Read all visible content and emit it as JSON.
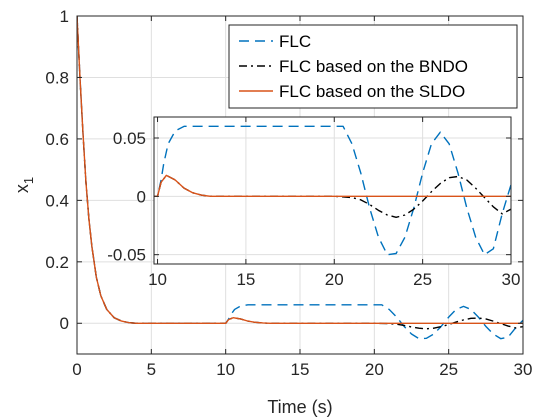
{
  "chart_data": [
    {
      "type": "line",
      "role": "main",
      "xlabel": "Time (s)",
      "ylabel": "x",
      "ylabel_subscript": "1",
      "xlim": [
        0,
        30
      ],
      "ylim": [
        -0.1,
        1.0
      ],
      "xticks": [
        0,
        5,
        10,
        15,
        20,
        25,
        30
      ],
      "yticks": [
        0,
        0.2,
        0.4,
        0.6,
        0.8,
        1
      ],
      "xtick_labels": [
        "0",
        "5",
        "10",
        "15",
        "20",
        "25",
        "30"
      ],
      "ytick_labels": [
        "0",
        "0.2",
        "0.4",
        "0.6",
        "0.8",
        "1"
      ],
      "grid": true,
      "legend_position": "top-right",
      "series": [
        {
          "name": "FLC",
          "color": "#0072BD",
          "dash": "dashed",
          "x": [
            0,
            0.2,
            0.4,
            0.6,
            0.8,
            1.0,
            1.3,
            1.6,
            2.0,
            2.5,
            3.0,
            3.5,
            4.0,
            5.0,
            6.0,
            7.0,
            8.0,
            9.0,
            10.0,
            10.2,
            10.35,
            10.6,
            11.0,
            11.5,
            12.0,
            13.0,
            14.0,
            15.0,
            16.0,
            17.0,
            18.0,
            19.0,
            20.0,
            20.5,
            21.0,
            21.5,
            22.0,
            22.5,
            23.0,
            23.5,
            24.0,
            24.5,
            25.0,
            25.5,
            26.0,
            26.5,
            27.0,
            27.5,
            28.0,
            28.5,
            29.0,
            29.5,
            30.0
          ],
          "y": [
            1.0,
            0.8,
            0.62,
            0.46,
            0.34,
            0.25,
            0.15,
            0.09,
            0.045,
            0.018,
            0.007,
            0.002,
            0.0,
            0.0,
            0.0,
            0.0,
            0.0,
            0.0,
            0.0,
            0.014,
            0.028,
            0.045,
            0.056,
            0.06,
            0.06,
            0.06,
            0.06,
            0.06,
            0.06,
            0.06,
            0.06,
            0.06,
            0.06,
            0.06,
            0.045,
            0.02,
            -0.01,
            -0.035,
            -0.05,
            -0.049,
            -0.035,
            -0.01,
            0.02,
            0.045,
            0.055,
            0.045,
            0.02,
            -0.01,
            -0.035,
            -0.05,
            -0.045,
            -0.015,
            0.01
          ]
        },
        {
          "name": "FLC based on the BNDO",
          "color": "#000000",
          "dash": "dashdot",
          "x": [
            0,
            0.2,
            0.4,
            0.6,
            0.8,
            1.0,
            1.3,
            1.6,
            2.0,
            2.5,
            3.0,
            3.5,
            4.0,
            5.0,
            6.0,
            7.0,
            8.0,
            9.0,
            10.0,
            10.2,
            10.5,
            11.0,
            11.5,
            12.0,
            12.5,
            13.0,
            14.0,
            15.0,
            16.0,
            17.0,
            18.0,
            19.0,
            20.0,
            21.0,
            21.5,
            22.0,
            22.5,
            23.0,
            23.5,
            24.0,
            24.5,
            25.0,
            25.5,
            26.0,
            26.5,
            27.0,
            27.5,
            28.0,
            28.5,
            29.0,
            29.5,
            30.0
          ],
          "y": [
            1.0,
            0.8,
            0.62,
            0.46,
            0.34,
            0.25,
            0.15,
            0.09,
            0.045,
            0.018,
            0.007,
            0.002,
            0.0,
            0.0,
            0.0,
            0.0,
            0.0,
            0.0,
            0.0,
            0.012,
            0.018,
            0.014,
            0.007,
            0.003,
            0.001,
            0.0,
            0.0,
            0.0,
            0.0,
            0.0,
            0.0,
            0.0,
            0.0,
            -0.001,
            -0.003,
            -0.007,
            -0.012,
            -0.016,
            -0.018,
            -0.016,
            -0.011,
            -0.004,
            0.004,
            0.011,
            0.016,
            0.017,
            0.014,
            0.007,
            -0.001,
            -0.009,
            -0.015,
            -0.011
          ]
        },
        {
          "name": "FLC based on the SLDO",
          "color": "#D95319",
          "dash": "solid",
          "x": [
            0,
            0.2,
            0.4,
            0.6,
            0.8,
            1.0,
            1.3,
            1.6,
            2.0,
            2.5,
            3.0,
            3.5,
            4.0,
            5.0,
            6.0,
            7.0,
            8.0,
            9.0,
            10.0,
            10.2,
            10.5,
            11.0,
            11.5,
            12.0,
            12.5,
            13.0,
            14.0,
            30.0
          ],
          "y": [
            1.0,
            0.8,
            0.62,
            0.46,
            0.34,
            0.25,
            0.15,
            0.09,
            0.045,
            0.018,
            0.007,
            0.002,
            0.0,
            0.0,
            0.0,
            0.0,
            0.0,
            0.0,
            0.0,
            0.012,
            0.018,
            0.014,
            0.007,
            0.003,
            0.001,
            0.0,
            0.0,
            0.0
          ]
        }
      ]
    },
    {
      "type": "line",
      "role": "inset",
      "xlim": [
        9.8,
        30
      ],
      "ylim": [
        -0.058,
        0.068
      ],
      "xticks": [
        10,
        15,
        20,
        25,
        30
      ],
      "yticks": [
        -0.05,
        0,
        0.05
      ],
      "xtick_labels": [
        "10",
        "15",
        "20",
        "25",
        "30"
      ],
      "ytick_labels": [
        "-0.05",
        "0",
        "0.05"
      ],
      "grid": true,
      "series_ref": "same as main"
    }
  ]
}
